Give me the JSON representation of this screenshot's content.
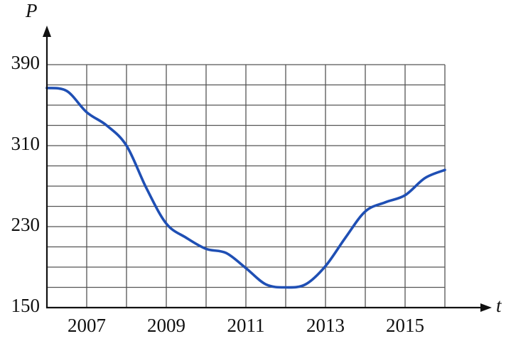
{
  "chart_data": {
    "type": "line",
    "x_label": "t",
    "y_label": "P",
    "x": [
      2006,
      2006.5,
      2007,
      2007.5,
      2008,
      2008.5,
      2009,
      2009.5,
      2010,
      2010.5,
      2011,
      2011.5,
      2012,
      2012.5,
      2013,
      2013.5,
      2014,
      2014.5,
      2015,
      2015.5,
      2016
    ],
    "series": [
      {
        "color": "#1f4fb4",
        "values": [
          367,
          364,
          343,
          330,
          310,
          268,
          233,
          219,
          208,
          204,
          189,
          173,
          170,
          173,
          191,
          219,
          245,
          254,
          261,
          278,
          286
        ]
      }
    ],
    "xlim": [
      2006,
      2016
    ],
    "ylim": [
      150,
      390
    ],
    "xticks": [
      2007,
      2009,
      2011,
      2013,
      2015
    ],
    "x_minor_ticks": [
      2008,
      2010,
      2012,
      2014,
      2016
    ],
    "yticks": [
      150,
      230,
      310,
      390
    ],
    "y_minor_ticks": [
      170,
      190,
      210,
      250,
      270,
      290,
      330,
      350,
      370
    ],
    "grid": true
  }
}
